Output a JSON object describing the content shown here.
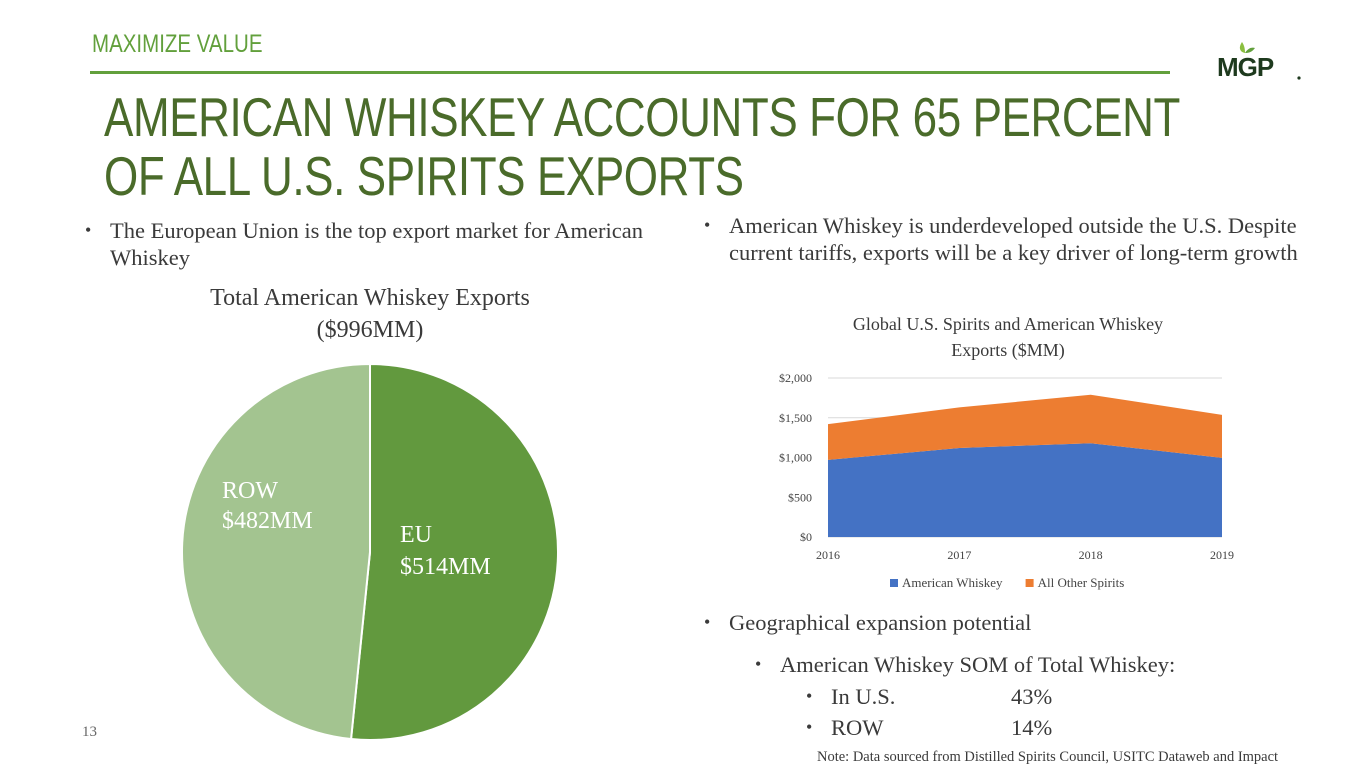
{
  "header": {
    "section_label": "MAXIMIZE VALUE",
    "title_line1": "AMERICAN WHISKEY ACCOUNTS FOR 65 PERCENT",
    "title_line2": "OF ALL U.S. SPIRITS EXPORTS",
    "logo_text": "MGP",
    "accent_color": "#62a03c",
    "title_color": "#4a6b2a"
  },
  "left": {
    "bullet": "The European Union is the top export market for American Whiskey"
  },
  "right": {
    "bullet": "American Whiskey is underdeveloped outside the U.S. Despite current tariffs, exports will be a key driver of long-term growth",
    "geo_bullet": "Geographical expansion potential",
    "som_bullet": "American Whiskey SOM of Total Whiskey:",
    "us_label": "In U.S.",
    "us_value": "43%",
    "row_label": "ROW",
    "row_value": "14%"
  },
  "footer": {
    "page_number": "13",
    "note": "Note: Data sourced from Distilled Spirits Council, USITC Dataweb and Impact"
  },
  "chart_data": [
    {
      "type": "pie",
      "title_line1": "Total American Whiskey Exports",
      "title_line2": "($996MM)",
      "slices": [
        {
          "name": "EU",
          "value": 514,
          "label": "$514MM",
          "color": "#62993e"
        },
        {
          "name": "ROW",
          "value": 482,
          "label": "$482MM",
          "color": "#a3c490"
        }
      ]
    },
    {
      "type": "area",
      "stacked": true,
      "title_line1": "Global U.S. Spirits and American Whiskey",
      "title_line2": "Exports   ($MM)",
      "categories": [
        "2016",
        "2017",
        "2018",
        "2019"
      ],
      "series": [
        {
          "name": "American Whiskey",
          "values": [
            970,
            1120,
            1180,
            996
          ],
          "color": "#4472c4"
        },
        {
          "name": "All Other Spirits",
          "values": [
            450,
            510,
            610,
            540
          ],
          "color": "#ed7d31"
        }
      ],
      "ylim": [
        0,
        2000
      ],
      "yticks": [
        0,
        500,
        1000,
        1500,
        2000
      ],
      "ytick_labels": [
        "$0",
        "$500",
        "$1,000",
        "$1,500",
        "$2,000"
      ],
      "grid": true,
      "legend": "bottom"
    }
  ]
}
